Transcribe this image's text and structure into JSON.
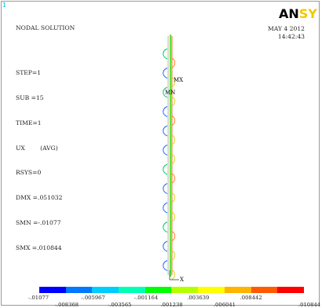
{
  "corner_tag": "1",
  "info": {
    "title": "NODAL SOLUTION",
    "step": "STEP=1",
    "sub": "SUB =15",
    "time": "TIME=1",
    "ux": "UX        (AVG)",
    "rsys": "RSYS=0",
    "dmx": "DMX =.051032",
    "smn": "SMN =-.01077",
    "smx": "SMX =.010844"
  },
  "logo": {
    "dark": "AN",
    "light": "SY"
  },
  "date": {
    "line1": "MAY  4 2012",
    "line2": "14:42:43"
  },
  "markers": {
    "mx": "MX",
    "mn": "MN",
    "axis_x": "X"
  },
  "legend": {
    "colors": [
      "#0000ff",
      "#0078ff",
      "#00cdff",
      "#00ffb4",
      "#00ff00",
      "#b4ff00",
      "#ffff00",
      "#ffb400",
      "#ff5a00",
      "#ff0000"
    ],
    "ticks_upper": [
      "-.01077",
      "-.005967",
      "-.001164",
      ".003639",
      ".008442"
    ],
    "ticks_lower": [
      "-.008368",
      "-.003565",
      ".001238",
      ".006041",
      ".010844"
    ]
  }
}
